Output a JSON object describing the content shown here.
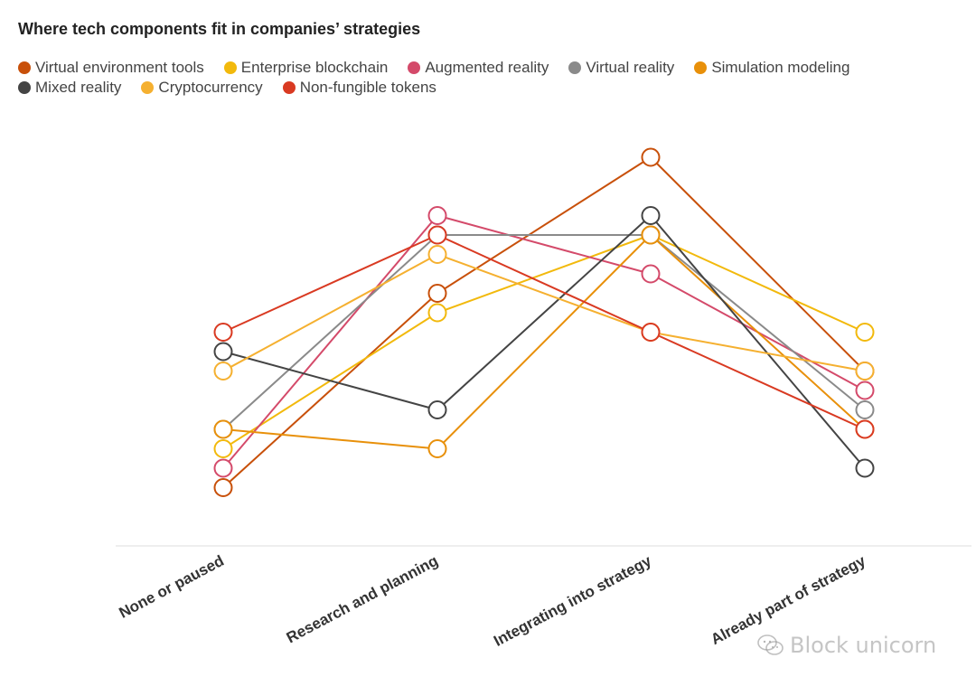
{
  "chart_data": {
    "type": "line",
    "title": "Where tech components fit in companies’ strategies",
    "xlabel": "",
    "ylabel": "",
    "categories": [
      "None or paused",
      "Research and planning",
      "Integrating into strategy",
      "Already part of strategy"
    ],
    "ylim": [
      0,
      20
    ],
    "grid": false,
    "legend_position": "top",
    "series": [
      {
        "name": "Virtual environment tools",
        "color": "#C8500A",
        "values": [
          3,
          13,
          20,
          9
        ]
      },
      {
        "name": "Enterprise blockchain",
        "color": "#F2B90C",
        "values": [
          5,
          12,
          16,
          11
        ]
      },
      {
        "name": "Augmented reality",
        "color": "#D44A6A",
        "values": [
          4,
          17,
          14,
          8
        ]
      },
      {
        "name": "Virtual reality",
        "color": "#8A8A8A",
        "values": [
          6,
          16,
          16,
          7
        ]
      },
      {
        "name": "Simulation modeling",
        "color": "#E8900A",
        "values": [
          6,
          5,
          16,
          6
        ]
      },
      {
        "name": "Mixed reality",
        "color": "#444444",
        "values": [
          10,
          7,
          17,
          4
        ]
      },
      {
        "name": "Cryptocurrency",
        "color": "#F5B030",
        "values": [
          9,
          15,
          11,
          9
        ]
      },
      {
        "name": "Non-fungible tokens",
        "color": "#D93A22",
        "values": [
          11,
          16,
          11,
          6
        ]
      }
    ]
  },
  "watermark": {
    "text": "Block unicorn",
    "icon": "wechat-icon"
  }
}
